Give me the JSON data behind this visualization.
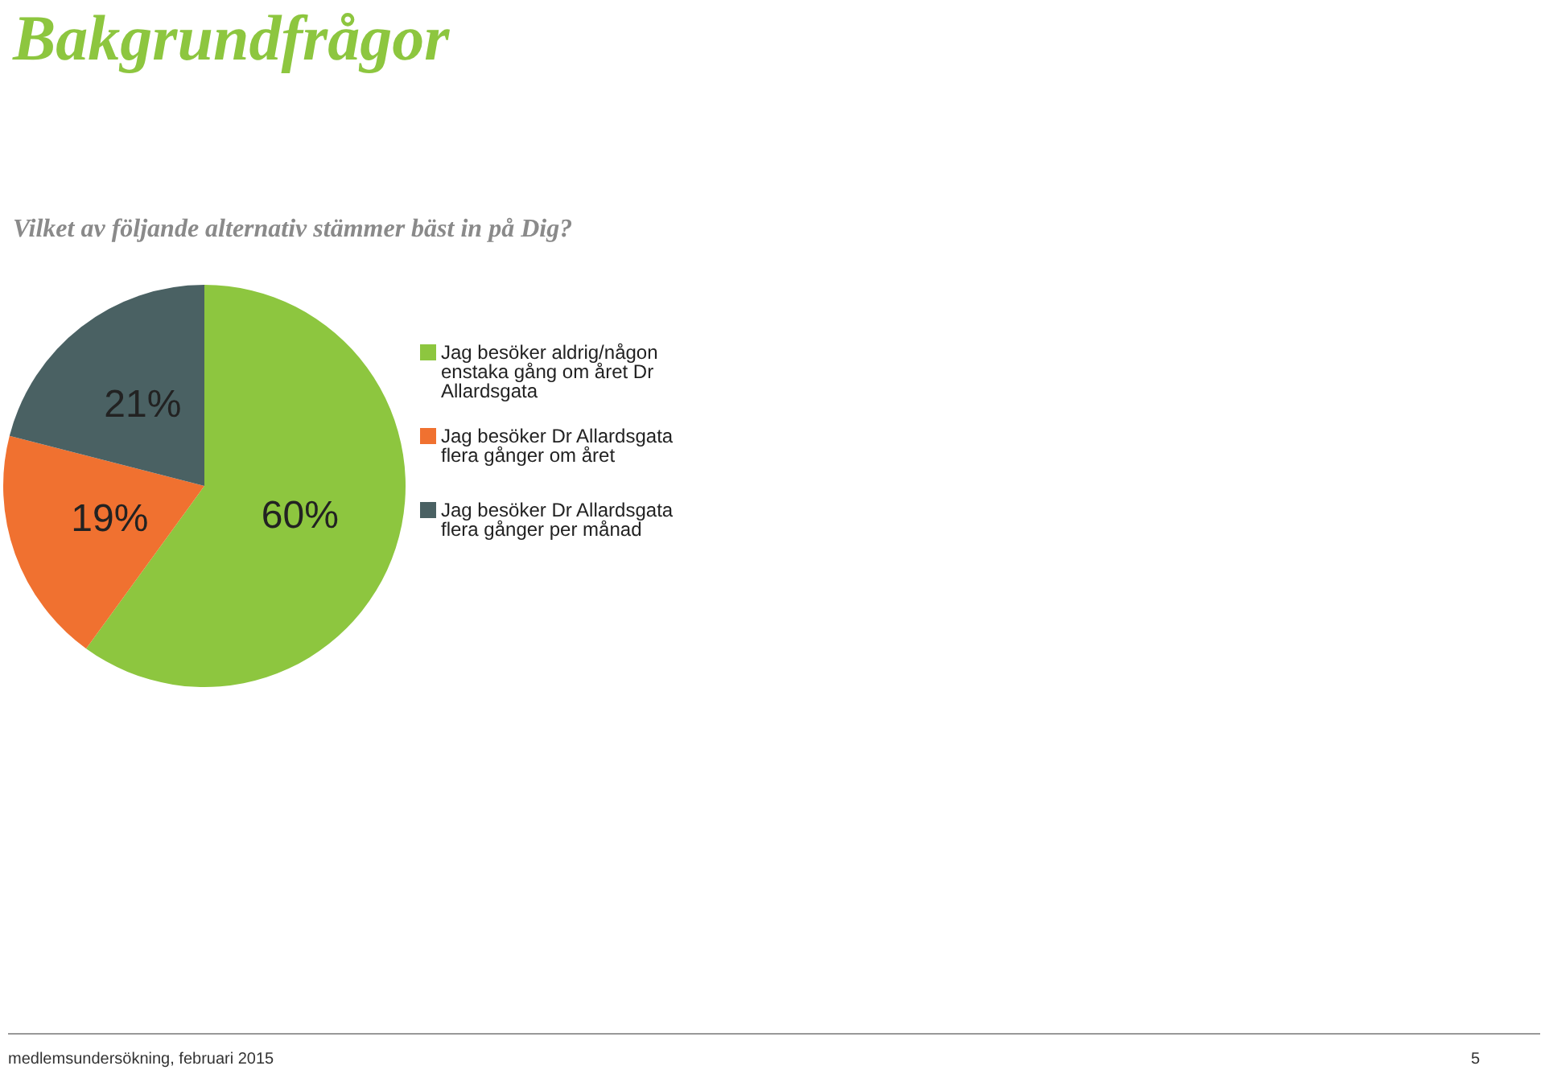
{
  "chart_data": {
    "type": "pie",
    "title": "Bakgrundfrågor",
    "subtitle": "Vilket av följande alternativ stämmer bäst in på Dig?",
    "categories": [
      "Jag besöker aldrig/någon enstaka gång om året Dr Allardsgata",
      "Jag besöker Dr Allardsgata flera gånger om året",
      "Jag besöker Dr Allardsgata flera gånger per månad"
    ],
    "values": [
      60,
      19,
      21
    ],
    "colors": [
      "#8dc63f",
      "#f07130",
      "#4a6163"
    ],
    "value_labels": [
      "60%",
      "19%",
      "21%"
    ],
    "legend": "right",
    "annotations": [
      "medlemsundersökning, februari 2015",
      "5"
    ]
  }
}
